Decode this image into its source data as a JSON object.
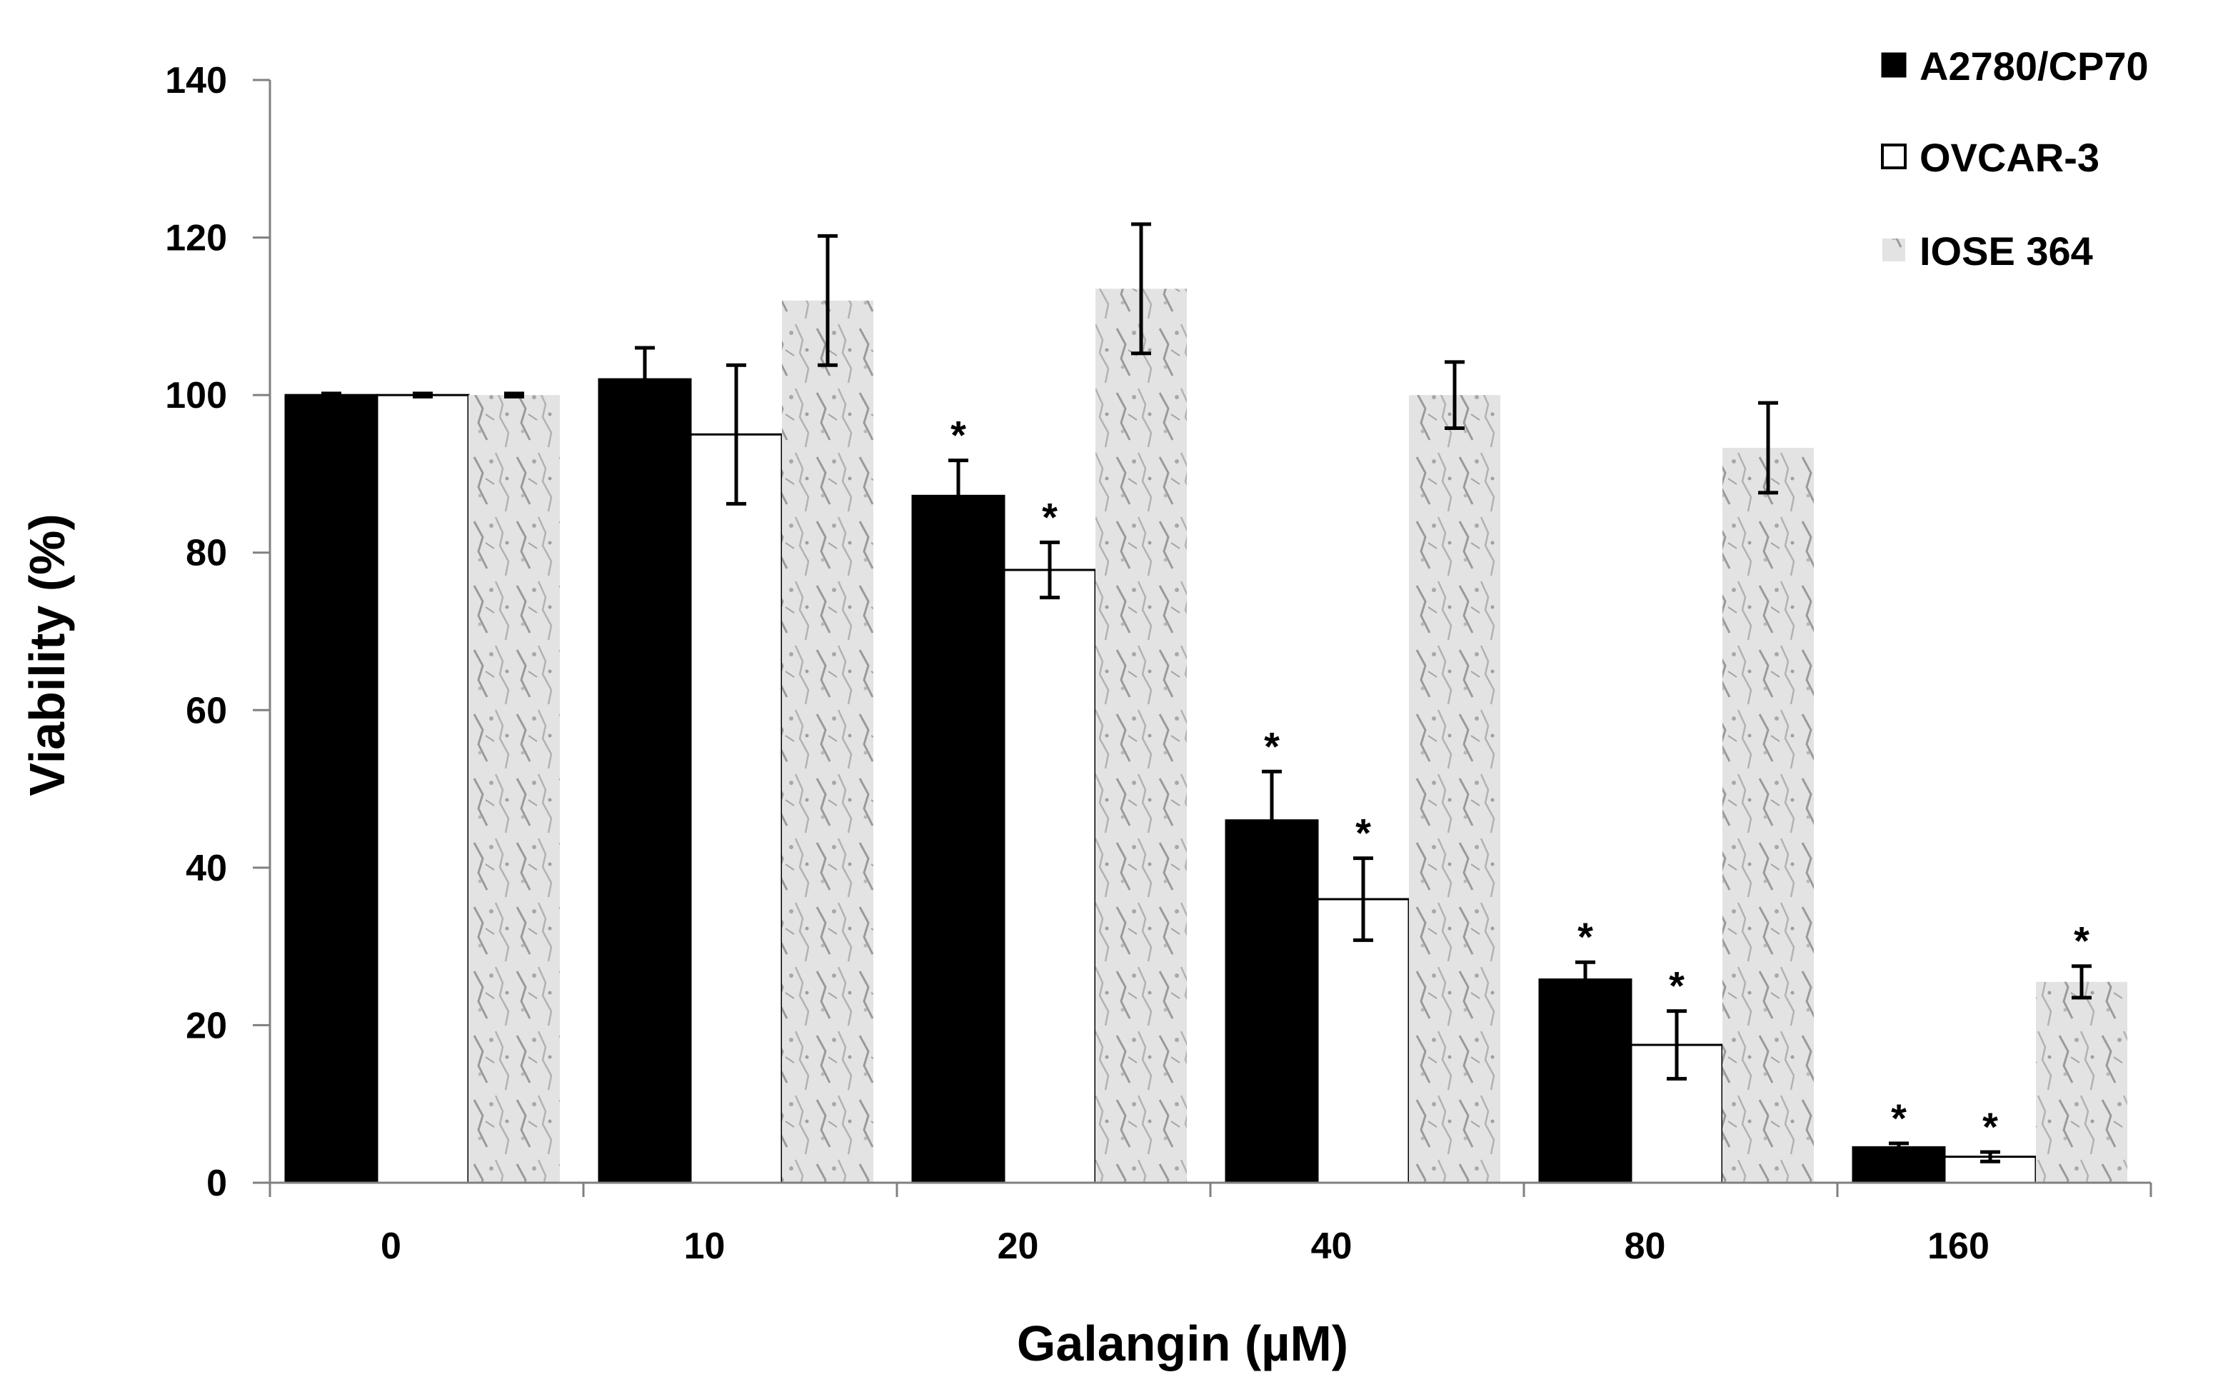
{
  "colors": {
    "A2780/CP70": "#000000",
    "OVCAR-3": "#ffffff",
    "IOSE 364": "#d8d8d8",
    "axis": "#808080",
    "error_bar": "#000000"
  },
  "chart_data": {
    "type": "bar",
    "title": "",
    "xlabel": "Galangin (µM)",
    "ylabel": "Viability (%)",
    "ylim": [
      0,
      140
    ],
    "yticks": [
      "0",
      "20",
      "40",
      "60",
      "80",
      "100",
      "120",
      "140"
    ],
    "categories": [
      "0",
      "10",
      "20",
      "40",
      "80",
      "160"
    ],
    "grid": false,
    "legend_position": "top-right",
    "series": [
      {
        "name": "A2780/CP70",
        "values": [
          100,
          102,
          87.2,
          46,
          25.8,
          4.5
        ],
        "errors": [
          0.2,
          4,
          4.5,
          6.2,
          2.2,
          0.5
        ],
        "significance": [
          "",
          "",
          "*",
          "*",
          "*",
          "*"
        ]
      },
      {
        "name": "OVCAR-3",
        "values": [
          100,
          95,
          77.8,
          36,
          17.5,
          3.3
        ],
        "errors": [
          0.2,
          8.8,
          3.5,
          5.2,
          4.3,
          0.6
        ],
        "significance": [
          "",
          "",
          "*",
          "*",
          "*",
          "*"
        ]
      },
      {
        "name": "IOSE 364",
        "values": [
          100,
          112,
          113.5,
          100,
          93.3,
          25.5
        ],
        "errors": [
          0.2,
          8.2,
          8.2,
          4.2,
          5.7,
          2
        ],
        "significance": [
          "",
          "",
          "",
          "",
          "",
          "*"
        ]
      }
    ]
  }
}
